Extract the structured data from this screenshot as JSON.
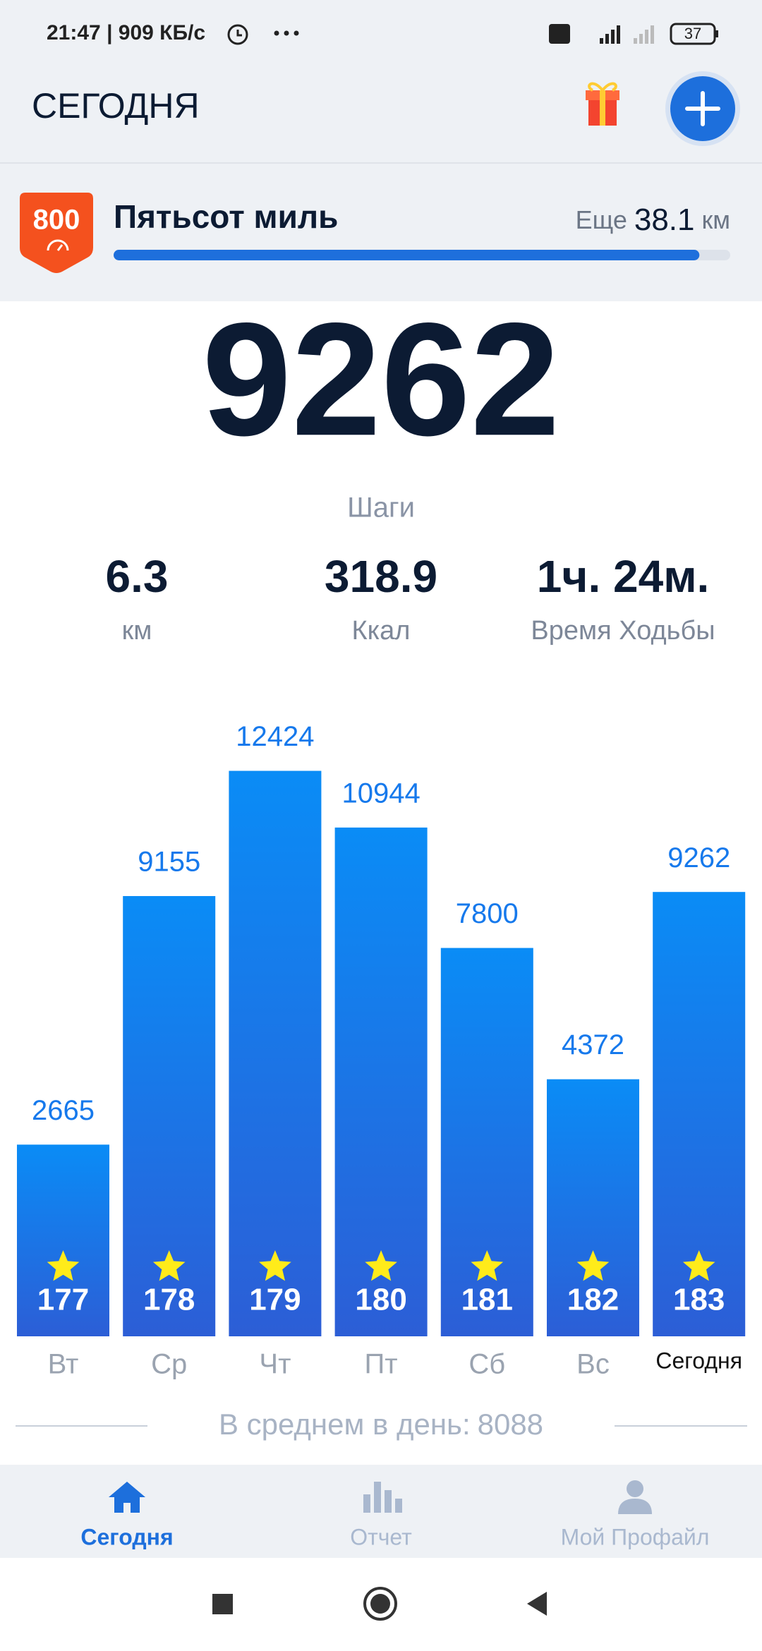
{
  "status_bar": {
    "time_speed": "21:47 | 909 КБ/с",
    "battery": "37"
  },
  "header": {
    "title": "СЕГОДНЯ"
  },
  "achievement": {
    "badge": "800",
    "title": "Пятьсот миль",
    "remaining_label": "Еще",
    "remaining": "38.1",
    "unit": "км",
    "progress": 95
  },
  "summary": {
    "steps": "9262",
    "steps_label": "Шаги",
    "stats": [
      {
        "value": "6.3",
        "label": "км"
      },
      {
        "value": "318.9",
        "label": "Ккал"
      },
      {
        "value": "1ч. 24м.",
        "label": "Время Ходьбы"
      }
    ]
  },
  "chart_data": {
    "type": "bar",
    "categories": [
      "Вт",
      "Ср",
      "Чт",
      "Пт",
      "Сб",
      "Вс",
      "Сегодня"
    ],
    "values": [
      2665,
      9155,
      12424,
      10944,
      7800,
      4372,
      9262
    ],
    "day_numbers": [
      "177",
      "178",
      "179",
      "180",
      "181",
      "182",
      "183"
    ],
    "color": "#1679ec",
    "ylim": [
      -2340,
      14000
    ],
    "average_label": "В среднем в день:",
    "average": 8088
  },
  "nav": {
    "items": [
      "Сегодня",
      "Отчет",
      "Мой Профайл"
    ]
  }
}
